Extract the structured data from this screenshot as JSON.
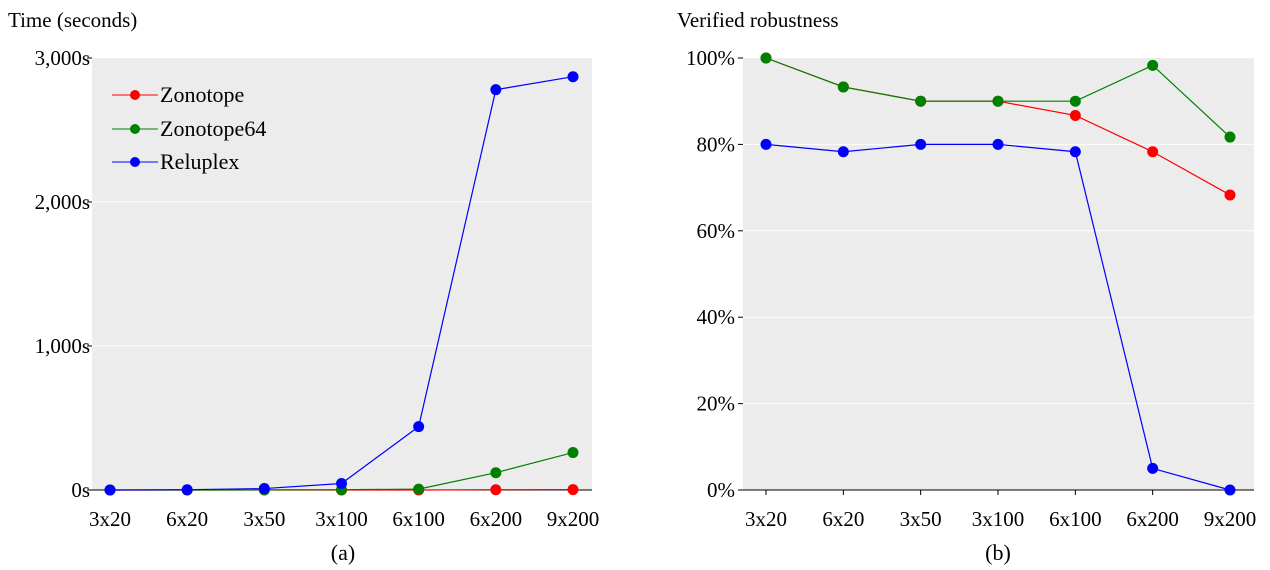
{
  "chart_data": [
    {
      "type": "line",
      "ylabel": "Time (seconds)",
      "caption": "(a)",
      "categories": [
        "3x20",
        "6x20",
        "3x50",
        "3x100",
        "6x100",
        "6x200",
        "9x200"
      ],
      "yticks": [
        "0s",
        "1,000s",
        "2,000s",
        "3,000s"
      ],
      "ylim": [
        0,
        3000
      ],
      "grid": true,
      "legend_position": "top-left",
      "series": [
        {
          "name": "Zonotope",
          "color": "#ff0000",
          "values": [
            0,
            0,
            0,
            0,
            0,
            2,
            3
          ]
        },
        {
          "name": "Zonotope64",
          "color": "#008000",
          "values": [
            0,
            0,
            1,
            2,
            6,
            120,
            260
          ]
        },
        {
          "name": "Reluplex",
          "color": "#0000ff",
          "values": [
            0,
            2,
            10,
            45,
            440,
            2780,
            2870
          ]
        }
      ]
    },
    {
      "type": "line",
      "ylabel": "Verified robustness",
      "caption": "(b)",
      "categories": [
        "3x20",
        "6x20",
        "3x50",
        "3x100",
        "6x100",
        "6x200",
        "9x200"
      ],
      "yticks": [
        "0%",
        "20%",
        "40%",
        "60%",
        "80%",
        "100%"
      ],
      "ylim": [
        0,
        100
      ],
      "grid": true,
      "series": [
        {
          "name": "Zonotope",
          "color": "#ff0000",
          "values": [
            100,
            93.3,
            90,
            90,
            86.7,
            78.3,
            68.3
          ]
        },
        {
          "name": "Zonotope64",
          "color": "#008000",
          "values": [
            100,
            93.3,
            90,
            90,
            90,
            98.3,
            81.7
          ]
        },
        {
          "name": "Reluplex",
          "color": "#0000ff",
          "values": [
            80,
            78.3,
            80,
            80,
            78.3,
            5,
            0
          ]
        }
      ]
    }
  ]
}
